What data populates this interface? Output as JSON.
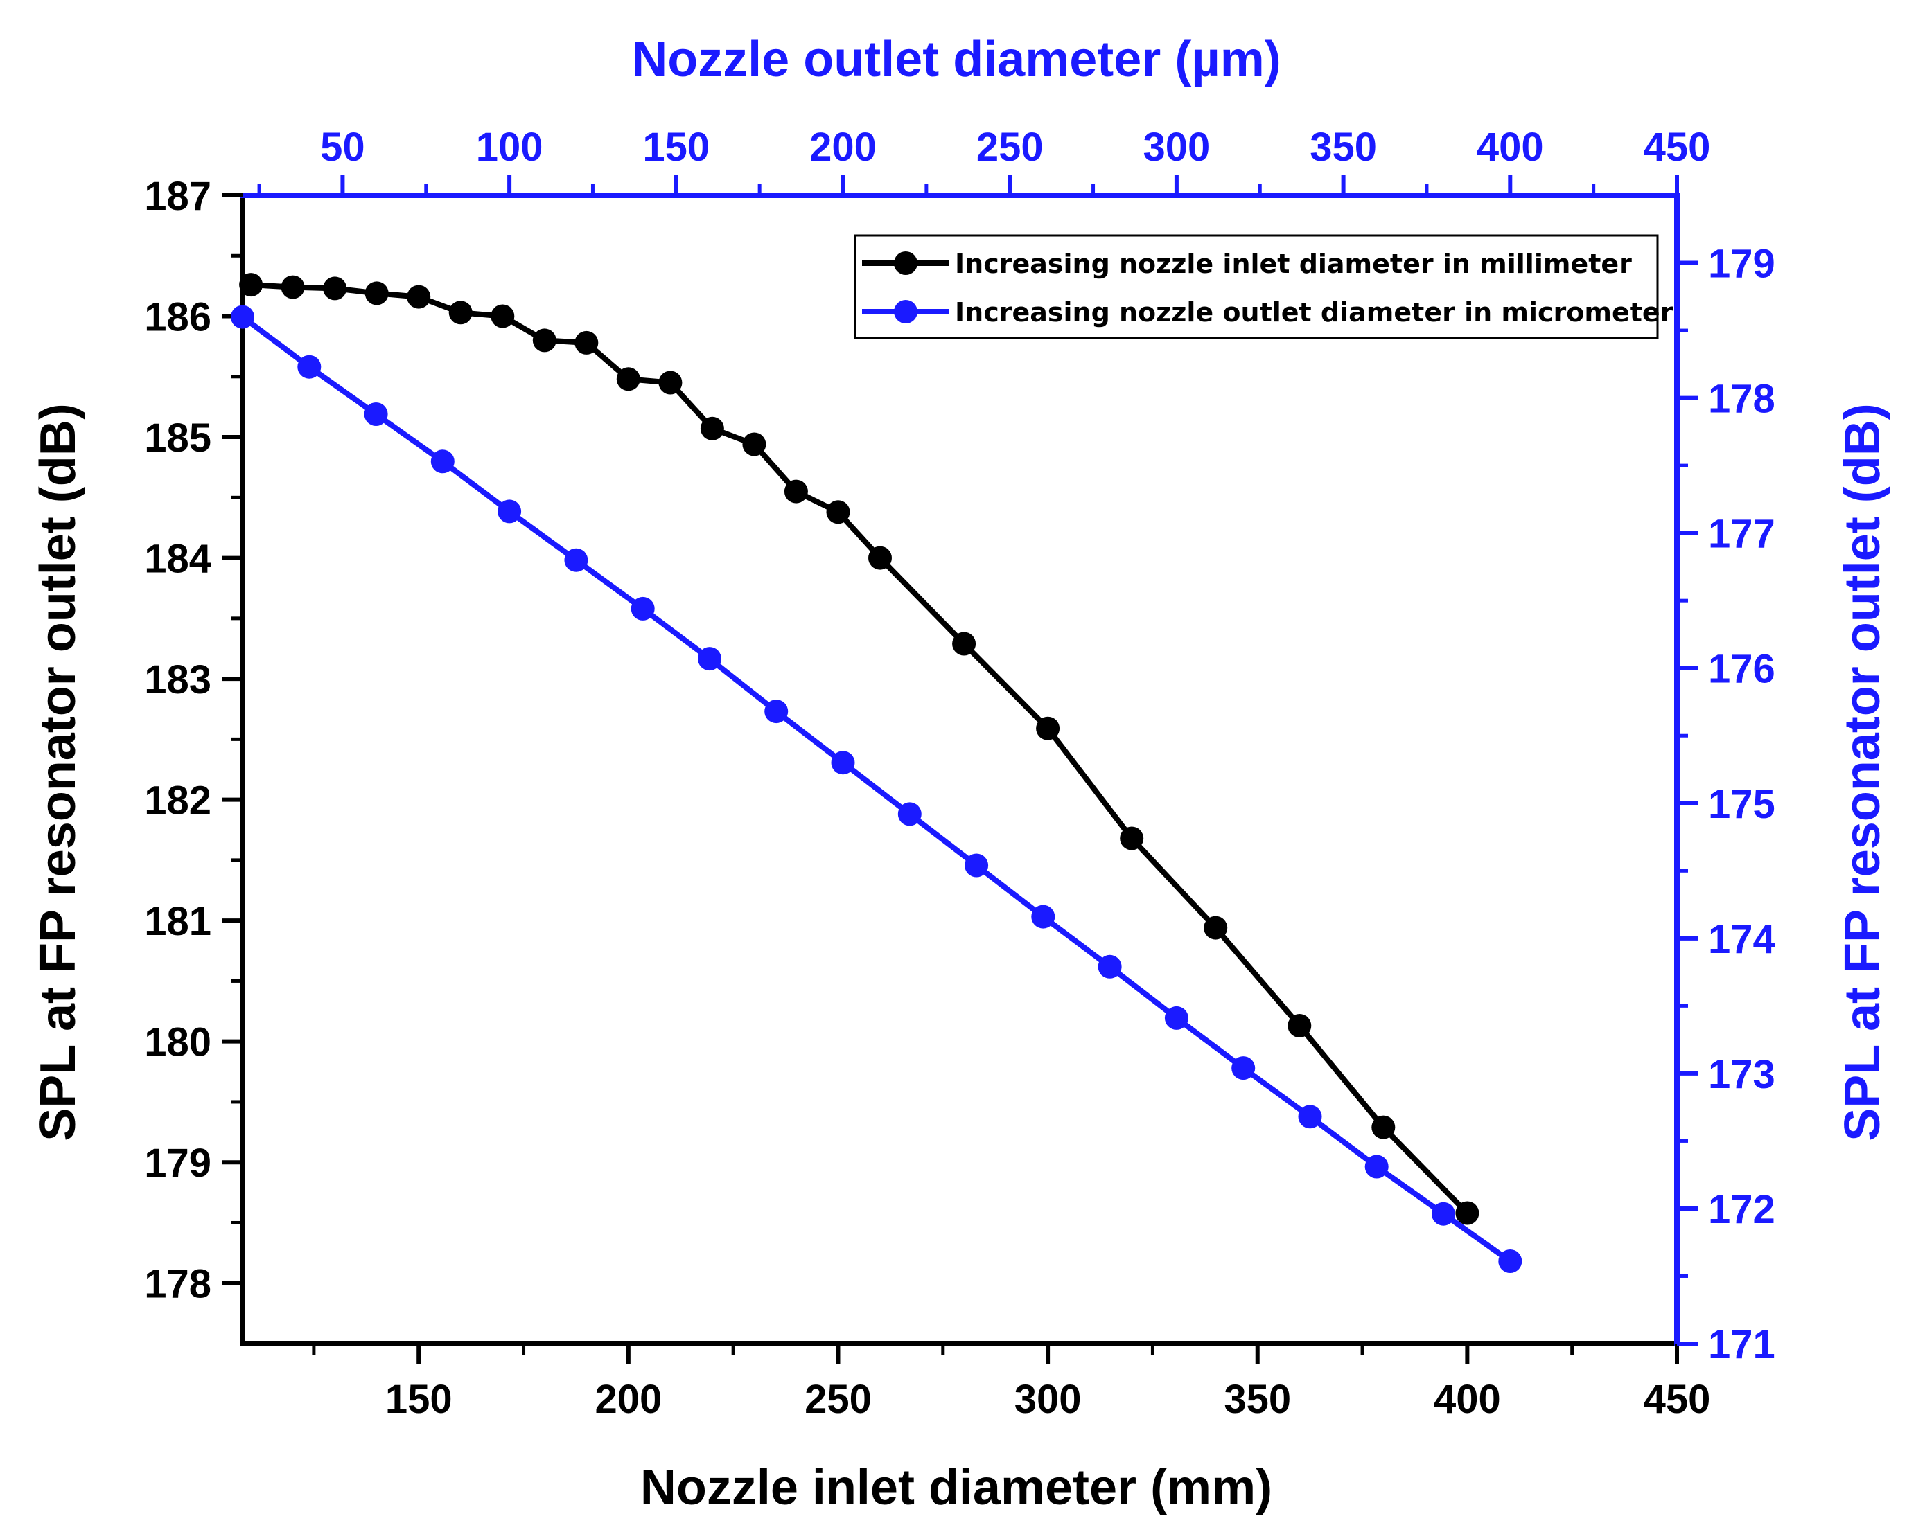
{
  "chart_data": {
    "type": "line",
    "axes": {
      "bottom": {
        "label": "Nozzle inlet diameter (mm)",
        "range": [
          108,
          450
        ],
        "ticks": [
          150,
          200,
          250,
          300,
          350,
          400,
          450
        ],
        "color": "#000000"
      },
      "top": {
        "label": "Nozzle outlet diameter (µm)",
        "range": [
          20,
          450
        ],
        "ticks": [
          50,
          100,
          150,
          200,
          250,
          300,
          350,
          400,
          450
        ],
        "color": "#1a1aff"
      },
      "left": {
        "label": "SPL at FP resonator outlet (dB)",
        "range": [
          177.5,
          187
        ],
        "ticks": [
          178,
          179,
          180,
          181,
          182,
          183,
          184,
          185,
          186,
          187
        ],
        "color": "#000000"
      },
      "right": {
        "label": "SPL at FP resonator outlet (dB)",
        "range": [
          171,
          179.5
        ],
        "ticks": [
          171,
          172,
          173,
          174,
          175,
          176,
          177,
          178,
          179
        ],
        "color": "#1a1aff"
      }
    },
    "series": [
      {
        "name": "Increasing nozzle inlet diameter in millimeter",
        "color": "#000000",
        "x_axis": "bottom",
        "y_axis": "left",
        "x": [
          110,
          120,
          130,
          140,
          150,
          160,
          170,
          180,
          190,
          200,
          210,
          220,
          230,
          240,
          250,
          260,
          280,
          300,
          320,
          340,
          360,
          380,
          400
        ],
        "y": [
          186.26,
          186.24,
          186.23,
          186.19,
          186.16,
          186.03,
          186.0,
          185.8,
          185.78,
          185.48,
          185.45,
          185.07,
          184.94,
          184.55,
          184.38,
          184.0,
          183.29,
          182.59,
          181.68,
          180.94,
          180.13,
          179.29,
          178.58
        ]
      },
      {
        "name": "Increasing nozzle outlet diameter in micrometer",
        "color": "#1a1aff",
        "x_axis": "top",
        "y_axis": "right",
        "x": [
          20,
          40,
          60,
          80,
          100,
          120,
          140,
          160,
          180,
          200,
          220,
          240,
          260,
          280,
          300,
          320,
          340,
          360,
          380,
          400
        ],
        "y": [
          178.6,
          178.23,
          177.88,
          177.53,
          177.16,
          176.8,
          176.44,
          176.07,
          175.68,
          175.3,
          174.92,
          174.54,
          174.16,
          173.79,
          173.41,
          173.04,
          172.68,
          172.31,
          171.96,
          171.61
        ]
      }
    ],
    "legend": {
      "position": "top-right",
      "entries": [
        "Increasing nozzle inlet diameter in millimeter",
        "Increasing nozzle outlet diameter in micrometer"
      ]
    },
    "grid": false
  }
}
